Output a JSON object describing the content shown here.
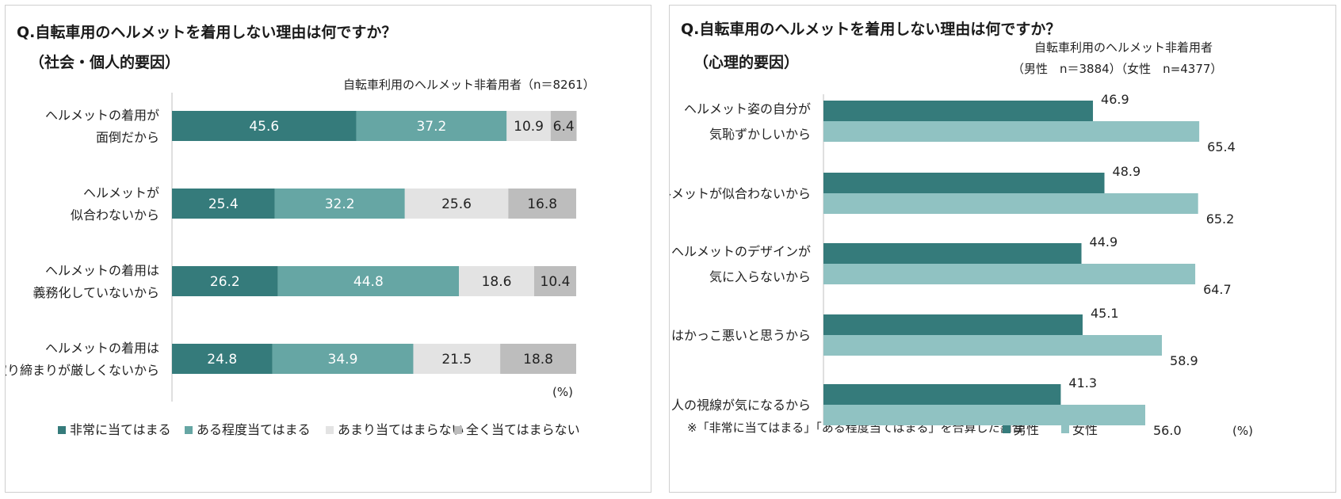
{
  "colors": {
    "very": "#357b7b",
    "some": "#66a6a4",
    "notmuch": "#e3e3e3",
    "notatall": "#bdbdbd",
    "male": "#357b7b",
    "female": "#90c2c2"
  },
  "left": {
    "title_line1": "Q.自転車用のヘルメットを着用しない理由は何ですか？",
    "title_line2": "（社会・個人的要因）",
    "sample_note": "自転車利用のヘルメット非着用者（n＝8261）",
    "unit": "(%)"
  },
  "right": {
    "title_line1": "Q.自転車用のヘルメットを着用しない理由は何ですか？",
    "title_line2": "（心理的要因）",
    "sample_note_line1": "自転車利用のヘルメット非着用者",
    "sample_note_line2": "（男性　n＝3884）（女性　n=4377）",
    "footnote": "※「非常に当てはまる」「ある程度当てはまる」を合算した割合",
    "unit": "(%)"
  },
  "chart_data": [
    {
      "type": "bar",
      "stacked": true,
      "orientation": "horizontal",
      "categories": [
        [
          "ヘルメットの着用が",
          "面倒だから"
        ],
        [
          "ヘルメットが",
          "似合わないから"
        ],
        [
          "ヘルメットの着用は",
          "義務化していないから"
        ],
        [
          "ヘルメットの着用は",
          "取り締まりが厳しくないから"
        ]
      ],
      "series": [
        {
          "name": "非常に当てはまる",
          "values": [
            45.6,
            25.4,
            26.2,
            24.8
          ]
        },
        {
          "name": "ある程度当てはまる",
          "values": [
            37.2,
            32.2,
            44.8,
            34.9
          ]
        },
        {
          "name": "あまり当てはまらない",
          "values": [
            10.9,
            25.6,
            18.6,
            21.5
          ]
        },
        {
          "name": "全く当てはまらない",
          "values": [
            6.4,
            16.8,
            10.4,
            18.8
          ]
        }
      ],
      "xlim": [
        0,
        100
      ],
      "legend_position": "bottom"
    },
    {
      "type": "bar",
      "orientation": "horizontal",
      "categories": [
        [
          "ヘルメット姿の自分が",
          "気恥ずかしいから"
        ],
        [
          "ヘルメットが似合わないから"
        ],
        [
          "ヘルメットのデザインが",
          "気に入らないから"
        ],
        [
          "ヘルメットはかっこ悪いと思うから"
        ],
        [
          "人の視線が気になるから"
        ]
      ],
      "series": [
        {
          "name": "男性",
          "values": [
            46.9,
            48.9,
            44.9,
            45.1,
            41.3
          ]
        },
        {
          "name": "女性",
          "values": [
            65.4,
            65.2,
            64.7,
            58.9,
            56.0
          ]
        }
      ],
      "legend_position": "bottom"
    }
  ]
}
